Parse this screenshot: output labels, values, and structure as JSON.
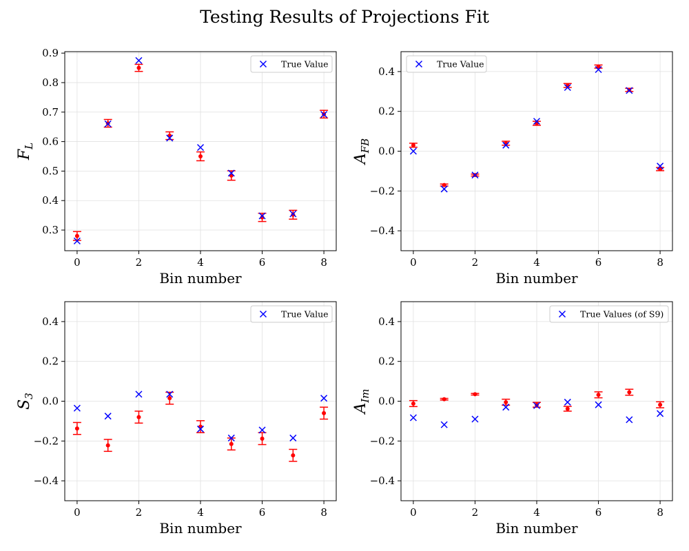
{
  "figure": {
    "title": "Testing Results of Projections Fit"
  },
  "colors": {
    "true_marker": "#0000ff",
    "fit_point": "#ff0000",
    "grid": "#e0e0e0",
    "axes": "#000000"
  },
  "chart_data": [
    {
      "type": "scatter",
      "xlabel": "Bin number",
      "ylabel": "F_L",
      "xlim": [
        -0.4,
        8.4
      ],
      "ylim": [
        0.23,
        0.905
      ],
      "xticks": [
        0,
        2,
        4,
        6,
        8
      ],
      "yticks": [
        0.3,
        0.4,
        0.5,
        0.6,
        0.7,
        0.8,
        0.9
      ],
      "ytick_labels": [
        "0.3",
        "0.4",
        "0.5",
        "0.6",
        "0.7",
        "0.8",
        "0.9"
      ],
      "grid": true,
      "legend_position": "top-right",
      "series": [
        {
          "name": "True Value",
          "marker": "x",
          "x": [
            0,
            1,
            2,
            3,
            4,
            5,
            6,
            7,
            8
          ],
          "values": [
            0.263,
            0.66,
            0.875,
            0.612,
            0.58,
            0.493,
            0.348,
            0.355,
            0.692
          ]
        },
        {
          "marker": "dot-errorbar",
          "x": [
            0,
            1,
            2,
            3,
            4,
            5,
            6,
            7,
            8
          ],
          "values": [
            0.28,
            0.662,
            0.85,
            0.62,
            0.55,
            0.485,
            0.343,
            0.352,
            0.693
          ],
          "errors": [
            0.015,
            0.013,
            0.012,
            0.013,
            0.015,
            0.016,
            0.014,
            0.015,
            0.013
          ]
        }
      ]
    },
    {
      "type": "scatter",
      "xlabel": "Bin number",
      "ylabel": "A_FB",
      "xlim": [
        -0.4,
        8.4
      ],
      "ylim": [
        -0.5,
        0.5
      ],
      "xticks": [
        0,
        2,
        4,
        6,
        8
      ],
      "yticks": [
        -0.4,
        -0.2,
        0.0,
        0.2,
        0.4
      ],
      "ytick_labels": [
        "−0.4",
        "−0.2",
        "0.0",
        "0.2",
        "0.4"
      ],
      "grid": true,
      "legend_position": "top-left",
      "series": [
        {
          "name": "True Value",
          "marker": "x",
          "x": [
            0,
            1,
            2,
            3,
            4,
            5,
            6,
            7,
            8
          ],
          "values": [
            0.0,
            -0.19,
            -0.12,
            0.03,
            0.15,
            0.32,
            0.41,
            0.305,
            -0.075
          ]
        },
        {
          "marker": "dot-errorbar",
          "x": [
            0,
            1,
            2,
            3,
            4,
            5,
            6,
            7,
            8
          ],
          "values": [
            0.03,
            -0.17,
            -0.12,
            0.04,
            0.14,
            0.33,
            0.425,
            0.308,
            -0.09
          ],
          "errors": [
            0.01,
            0.005,
            0.005,
            0.01,
            0.01,
            0.01,
            0.008,
            0.008,
            0.008
          ]
        }
      ]
    },
    {
      "type": "scatter",
      "xlabel": "Bin number",
      "ylabel": "S_3",
      "xlim": [
        -0.4,
        8.4
      ],
      "ylim": [
        -0.5,
        0.5
      ],
      "xticks": [
        0,
        2,
        4,
        6,
        8
      ],
      "yticks": [
        -0.4,
        -0.2,
        0.0,
        0.2,
        0.4
      ],
      "ytick_labels": [
        "−0.4",
        "−0.2",
        "0.0",
        "0.2",
        "0.4"
      ],
      "grid": true,
      "legend_position": "top-right",
      "series": [
        {
          "name": "True Value",
          "marker": "x",
          "x": [
            0,
            1,
            2,
            3,
            4,
            5,
            6,
            7,
            8
          ],
          "values": [
            -0.035,
            -0.075,
            0.035,
            0.035,
            -0.14,
            -0.185,
            -0.145,
            -0.185,
            0.015
          ]
        },
        {
          "marker": "dot-errorbar",
          "x": [
            0,
            1,
            2,
            3,
            4,
            5,
            6,
            7,
            8
          ],
          "values": [
            -0.137,
            -0.222,
            -0.08,
            0.015,
            -0.128,
            -0.215,
            -0.188,
            -0.272,
            -0.06
          ],
          "errors": [
            0.03,
            0.03,
            0.03,
            0.03,
            0.03,
            0.03,
            0.03,
            0.03,
            0.03
          ]
        }
      ]
    },
    {
      "type": "scatter",
      "xlabel": "Bin number",
      "ylabel": "A_Im",
      "xlim": [
        -0.4,
        8.4
      ],
      "ylim": [
        -0.5,
        0.5
      ],
      "xticks": [
        0,
        2,
        4,
        6,
        8
      ],
      "yticks": [
        -0.4,
        -0.2,
        0.0,
        0.2,
        0.4
      ],
      "ytick_labels": [
        "−0.4",
        "−0.2",
        "0.0",
        "0.2",
        "0.4"
      ],
      "grid": true,
      "legend_position": "top-right",
      "series": [
        {
          "name": "True Values (of S9)",
          "marker": "x",
          "x": [
            0,
            1,
            2,
            3,
            4,
            5,
            6,
            7,
            8
          ],
          "values": [
            -0.083,
            -0.118,
            -0.09,
            -0.03,
            -0.022,
            -0.005,
            -0.018,
            -0.093,
            -0.062
          ]
        },
        {
          "marker": "dot-errorbar",
          "x": [
            0,
            1,
            2,
            3,
            4,
            5,
            6,
            7,
            8
          ],
          "values": [
            -0.012,
            0.01,
            0.035,
            -0.005,
            -0.018,
            -0.038,
            0.032,
            0.045,
            -0.018
          ],
          "errors": [
            0.015,
            0.004,
            0.004,
            0.015,
            0.012,
            0.012,
            0.015,
            0.015,
            0.015
          ]
        }
      ]
    }
  ]
}
